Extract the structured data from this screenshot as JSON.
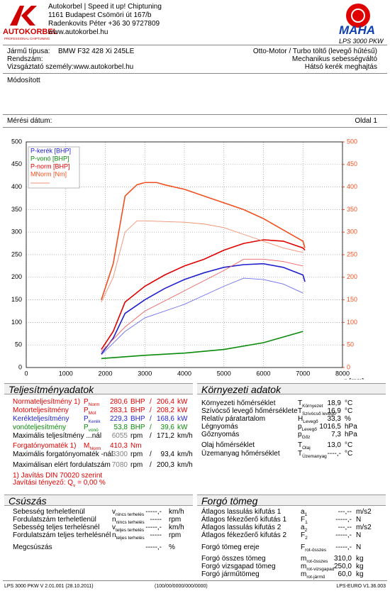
{
  "header": {
    "logo": "AUTOKORBEL",
    "logo_tagline": "PROFESSIONAL CHIPTUNING",
    "company": [
      "Autokorbel | Speed it up! Chiptuning",
      "1161 Budapest Csömöri út 167/b",
      "Radenkovits Péter +36 30 9727809",
      "www.autokorbel.hu"
    ],
    "maha": "MAHA",
    "model": "LPS 3000 PKW"
  },
  "vehicle": {
    "left": [
      {
        "label": "Jármű típusa:",
        "value": "BMW F32 428 Xi 245LE"
      },
      {
        "label": "Rendszám:"
      },
      {
        "label": "Vizsgáztató személy:www.autokorbel.hu"
      }
    ],
    "right": [
      "Otto-Motor / Turbo töltő (levegő hűtésű)",
      "Mechanikus sebességváltó",
      "Hátsó kerék meghajtás"
    ]
  },
  "remark": "Módosított",
  "measurement_date_label": "Mérési dátum:",
  "page": "Oldal 1",
  "chart_data": {
    "type": "line",
    "xlabel": "n [rpm]",
    "xlim": [
      0,
      8000
    ],
    "xticks": [
      0,
      1000,
      2000,
      3000,
      4000,
      5000,
      6000,
      7000,
      8000
    ],
    "ylim": [
      0,
      500
    ],
    "yticks": [
      0,
      50,
      100,
      150,
      200,
      250,
      300,
      350,
      400,
      450,
      500
    ],
    "y2lim": [
      0,
      500
    ],
    "y2ticks": [
      0,
      50,
      100,
      150,
      200,
      250,
      300,
      350,
      400,
      450,
      500
    ],
    "y2color": "#f05020",
    "grid": true,
    "legend": "upper left",
    "series": [
      {
        "name": "P-kerék [BHP]",
        "color": "#1f1fd0",
        "width": 1.6,
        "x": [
          1900,
          2200,
          2500,
          3000,
          3500,
          4000,
          4500,
          5000,
          5500,
          6000,
          6500,
          7000,
          7050
        ],
        "values": [
          30,
          65,
          120,
          150,
          175,
          195,
          210,
          222,
          228,
          230,
          222,
          205,
          190
        ]
      },
      {
        "name": "P-vonó [BHP]",
        "color": "#0a8a0a",
        "width": 1.6,
        "x": [
          1900,
          3000,
          4000,
          5000,
          6000,
          7000
        ],
        "values": [
          20,
          27,
          32,
          40,
          55,
          80
        ]
      },
      {
        "name": "P-norm [BHP]",
        "color": "#e00000",
        "width": 1.6,
        "x": [
          1900,
          2200,
          2500,
          3000,
          3500,
          4000,
          4500,
          5000,
          5500,
          6000,
          6500,
          7000,
          7050
        ],
        "values": [
          40,
          80,
          145,
          180,
          205,
          225,
          240,
          260,
          275,
          283,
          280,
          265,
          260
        ]
      },
      {
        "name": "MNorm [Nm]",
        "color": "#f05020",
        "width": 1.6,
        "axis": "y2",
        "x": [
          1900,
          2200,
          2500,
          2800,
          3000,
          3300,
          3500,
          4000,
          4500,
          5000,
          5500,
          6000,
          6500,
          7000,
          7050
        ],
        "values": [
          150,
          230,
          380,
          405,
          410,
          410,
          405,
          395,
          380,
          365,
          350,
          330,
          305,
          280,
          265
        ]
      },
      {
        "color": "#7070f0",
        "width": 0.9,
        "x": [
          1900,
          2500,
          3000,
          4000,
          5000,
          5500,
          6000,
          6500,
          7000
        ],
        "values": [
          28,
          80,
          110,
          140,
          180,
          198,
          195,
          185,
          165
        ]
      },
      {
        "color": "#f06060",
        "width": 0.9,
        "x": [
          1900,
          2500,
          3000,
          4000,
          5000,
          5500,
          6000,
          6500,
          7000
        ],
        "values": [
          35,
          90,
          125,
          170,
          215,
          240,
          240,
          235,
          225
        ]
      },
      {
        "color": "#f09070",
        "width": 0.9,
        "axis": "y2",
        "x": [
          1900,
          2200,
          2500,
          2800,
          3000,
          4000,
          4500,
          5000,
          5500,
          6000,
          6500,
          7000
        ],
        "values": [
          145,
          200,
          300,
          325,
          325,
          322,
          318,
          310,
          295,
          280,
          265,
          255
        ]
      }
    ]
  },
  "performance": {
    "title": "Teljesítményadatok",
    "rows": [
      {
        "label": "Normateljesítmény 1)",
        "symbol": "P",
        "symbol_sub": "Norm",
        "value": "280,6",
        "unit": "BHP",
        "separator": "/",
        "value2": "206,4",
        "unit2": "kW",
        "color": "#e00000"
      },
      {
        "label": "Motorteljesítmény",
        "symbol": "P",
        "symbol_sub": "Mot",
        "value": "283,1",
        "unit": "BHP",
        "separator": "/",
        "value2": "208,2",
        "unit2": "kW",
        "color": "#e00000"
      },
      {
        "label": "Kerékteljesítmény",
        "symbol": "P",
        "symbol_sub": "Kerék",
        "value": "229,3",
        "unit": "BHP",
        "separator": "/",
        "value2": "168,6",
        "unit2": "kW",
        "color": "#1f1fd0"
      },
      {
        "label": "vonóteljesítmény",
        "symbol": "P",
        "symbol_sub": "vonó",
        "value": "53,8",
        "unit": "BHP",
        "separator": "/",
        "value2": "39,6",
        "unit2": "kW",
        "color": "#0a8a0a"
      },
      {
        "label": "Maximális teljesítmény ...nál",
        "value": "6055",
        "value_color": "#808080",
        "unit": "rpm",
        "separator": "/",
        "value2": "171,2",
        "unit2": "km/h",
        "color": "#000000"
      },
      {
        "label": "Forgatónyomaték 1)",
        "symbol": "M",
        "symbol_sub": "Norm",
        "value": "410,3",
        "unit": "Nm",
        "color": "#e00000"
      },
      {
        "label": "Maximális forgatónyomaték -nál",
        "value": "3300",
        "value_color": "#808080",
        "unit": "rpm",
        "separator": "/",
        "value2": "93,4",
        "unit2": "km/h",
        "color": "#000000"
      },
      {
        "label": "Maximálisan elért fordulatszám",
        "value": "7080",
        "value_color": "#808080",
        "unit": "rpm",
        "separator": "/",
        "value2": "200,3",
        "unit2": "km/h",
        "color": "#000000"
      },
      {
        "label": "1) Javítás DIN 70020 szerint",
        "color": "#e00000"
      },
      {
        "label": "Javítási tényező: Q",
        "label_sub": "v",
        "label_tail": " =   0,00 %",
        "color": "#e00000"
      }
    ]
  },
  "environment": {
    "title": "Környezeti adatok",
    "rows": [
      {
        "label": "Környezeti hőmérséklet",
        "symbol": "T",
        "symbol_sub": "Környezet",
        "value": "18,9",
        "unit": "°C"
      },
      {
        "label": "Szívócső levegő hőmérséklete",
        "symbol": "T",
        "symbol_sub": "Szívócső levegő",
        "value": "16,9",
        "unit": "°C"
      },
      {
        "label": "Relatív páratartalom",
        "symbol": "H",
        "symbol_sub": "Levegő",
        "value": "33,3",
        "unit": "%"
      },
      {
        "label": "Légnyomás",
        "symbol": "p",
        "symbol_sub": "Levegő",
        "value": "1016,5",
        "unit": "hPa"
      },
      {
        "label": "Gőznyomás",
        "symbol": "p",
        "symbol_sub": "Gőz",
        "value": "7,3",
        "unit": "hPa"
      },
      {
        "label": "Olaj hőmérséklet",
        "symbol": "T",
        "symbol_sub": "Olaj",
        "value": "13,0",
        "unit": "°C"
      },
      {
        "label": "Üzemanyag hőmérséklet",
        "symbol": "T",
        "symbol_sub": "Üzemanyag",
        "value": "----,-",
        "unit": "°C"
      }
    ]
  },
  "slip": {
    "title": "Csúszás",
    "rows": [
      {
        "label": "Sebesség terheletlenül",
        "symbol": "v",
        "symbol_sub": "nincs terhelés",
        "value": "-----,-",
        "unit": "km/h"
      },
      {
        "label": "Fordulatszám terheletlenül",
        "symbol": "n",
        "symbol_sub": "nincs terhelés",
        "value": "-----",
        "unit": "rpm"
      },
      {
        "label": "Sebesség teljes terhelésnél",
        "symbol": "v",
        "symbol_sub": "teljes terhelés",
        "value": "-----,-",
        "unit": "km/h"
      },
      {
        "label": "Fordulatszám teljes terhelésnél",
        "symbol": "n",
        "symbol_sub": "teljes terhelés",
        "value": "-----",
        "unit": "rpm"
      },
      {
        "label": "Megcsúszás",
        "value": "-----,-",
        "unit": "%"
      }
    ]
  },
  "rotating_mass": {
    "title": "Forgó tömeg",
    "rows": [
      {
        "label": "Átlagos lassulás kifutás 1",
        "symbol": "a",
        "symbol_sub": "1",
        "value": "---,--",
        "unit": "m/s2"
      },
      {
        "label": "Átlagos fékezőerő kifutás 1",
        "symbol": "F",
        "symbol_sub": "1",
        "value": "-----,-",
        "unit": "N"
      },
      {
        "label": "Átlagos lassulás kifutás 2",
        "symbol": "a",
        "symbol_sub": "2",
        "value": "---,--",
        "unit": "m/s2"
      },
      {
        "label": "Átlagos fékezőerő kifutás 2",
        "symbol": "F",
        "symbol_sub": "2",
        "value": "-----,-",
        "unit": "N"
      },
      {
        "label": "Forgó tömeg ereje",
        "symbol": "F",
        "symbol_sub": "rot-összes",
        "value": "-----,-",
        "unit": "N"
      },
      {
        "label": "Forgó összes tömeg",
        "symbol": "m",
        "symbol_sub": "rot-összes",
        "value": "310,0",
        "unit": "kg"
      },
      {
        "label": "Forgó vizsgapad tömeg",
        "symbol": "m",
        "symbol_sub": "rot-vizsgapad",
        "value": "250,0",
        "unit": "kg"
      },
      {
        "label": "Forgó járműtömeg",
        "symbol": "m",
        "symbol_sub": "rot-jármű",
        "value": "60,0",
        "unit": "kg"
      }
    ]
  },
  "footer": {
    "left": "LPS 3000 PKW V 2.01.001 (28.10.2011)",
    "center": "(100/00/0000/000/0000)",
    "right": "LPS-EURO V1.36.003"
  }
}
